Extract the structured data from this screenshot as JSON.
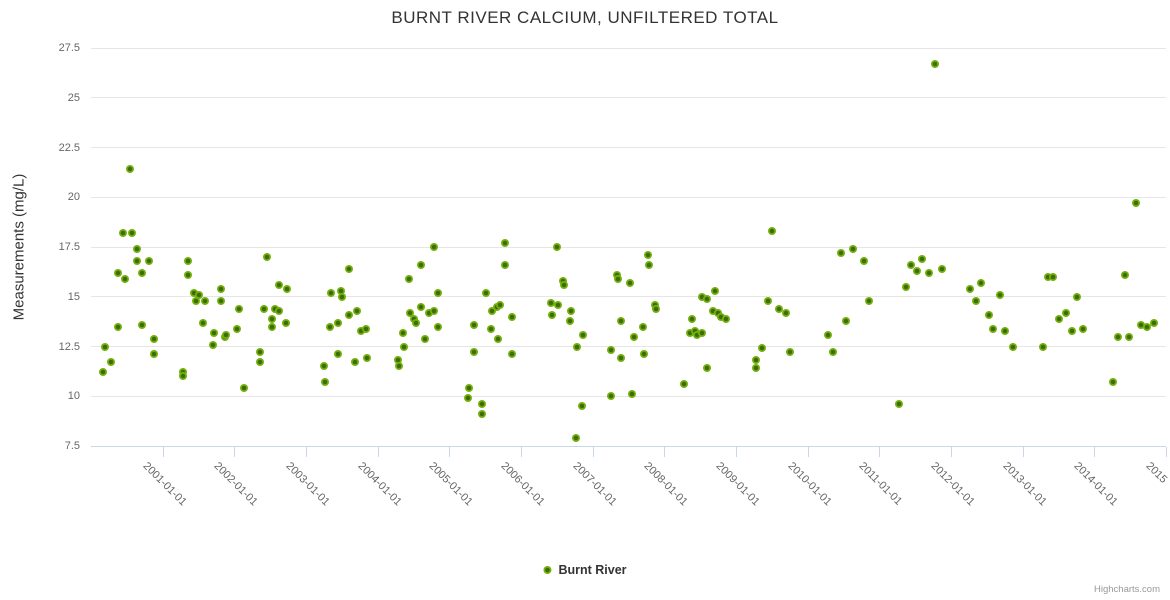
{
  "chart": {
    "title": "BURNT RIVER CALCIUM, UNFILTERED TOTAL",
    "legend": {
      "series_label": "Burnt River"
    },
    "credits": "Highcharts.com",
    "colors": {
      "marker_outer": "#76b00e",
      "marker_core": "#3a6e04",
      "gridline": "#e6e6e6",
      "axis_tick": "#ccd6eb",
      "title_text": "#333333",
      "label_text": "#666666",
      "credits_text": "#999999"
    }
  },
  "chart_data": {
    "type": "scatter",
    "title": "BURNT RIVER CALCIUM, UNFILTERED TOTAL",
    "xlabel": "",
    "ylabel": "Measurements (mg/L)",
    "xlim": [
      2000,
      2015
    ],
    "ylim": [
      7.5,
      27.5
    ],
    "grid": "horizontal-only",
    "legend_position": "bottom-center",
    "y_ticks": [
      {
        "value": 7.5,
        "label": "7.5"
      },
      {
        "value": 10,
        "label": "10"
      },
      {
        "value": 12.5,
        "label": "12.5"
      },
      {
        "value": 15,
        "label": "15"
      },
      {
        "value": 17.5,
        "label": "17.5"
      },
      {
        "value": 20,
        "label": "20"
      },
      {
        "value": 22.5,
        "label": "22.5"
      },
      {
        "value": 25,
        "label": "25"
      },
      {
        "value": 27.5,
        "label": "27.5"
      }
    ],
    "x_ticks": [
      {
        "value": 2001,
        "label": "2001-01-01"
      },
      {
        "value": 2002,
        "label": "2002-01-01"
      },
      {
        "value": 2003,
        "label": "2003-01-01"
      },
      {
        "value": 2004,
        "label": "2004-01-01"
      },
      {
        "value": 2005,
        "label": "2005-01-01"
      },
      {
        "value": 2006,
        "label": "2006-01-01"
      },
      {
        "value": 2007,
        "label": "2007-01-01"
      },
      {
        "value": 2008,
        "label": "2008-01-01"
      },
      {
        "value": 2009,
        "label": "2009-01-01"
      },
      {
        "value": 2010,
        "label": "2010-01-01"
      },
      {
        "value": 2011,
        "label": "2011-01-01"
      },
      {
        "value": 2012,
        "label": "2012-01-01"
      },
      {
        "value": 2013,
        "label": "2013-01-01"
      },
      {
        "value": 2014,
        "label": "2014-01-01"
      },
      {
        "value": 2015,
        "label": "2015"
      }
    ],
    "series": [
      {
        "name": "Burnt River",
        "points": [
          [
            2000.17,
            11.2
          ],
          [
            2000.19,
            12.5
          ],
          [
            2000.28,
            11.7
          ],
          [
            2000.38,
            16.2
          ],
          [
            2000.38,
            13.5
          ],
          [
            2000.45,
            18.2
          ],
          [
            2000.47,
            15.9
          ],
          [
            2000.54,
            21.4
          ],
          [
            2000.57,
            18.2
          ],
          [
            2000.64,
            17.4
          ],
          [
            2000.64,
            16.8
          ],
          [
            2000.71,
            16.2
          ],
          [
            2000.71,
            13.6
          ],
          [
            2000.81,
            16.8
          ],
          [
            2000.88,
            12.9
          ],
          [
            2000.88,
            12.1
          ],
          [
            2001.28,
            11.2
          ],
          [
            2001.28,
            11.0
          ],
          [
            2001.35,
            16.8
          ],
          [
            2001.35,
            16.1
          ],
          [
            2001.44,
            15.2
          ],
          [
            2001.47,
            14.8
          ],
          [
            2001.5,
            15.1
          ],
          [
            2001.56,
            13.7
          ],
          [
            2001.59,
            14.8
          ],
          [
            2001.7,
            12.6
          ],
          [
            2001.72,
            13.2
          ],
          [
            2001.81,
            15.4
          ],
          [
            2001.81,
            14.8
          ],
          [
            2001.87,
            13.0
          ],
          [
            2001.88,
            13.1
          ],
          [
            2002.04,
            13.4
          ],
          [
            2002.06,
            14.4
          ],
          [
            2002.14,
            10.4
          ],
          [
            2002.36,
            12.2
          ],
          [
            2002.36,
            11.7
          ],
          [
            2002.42,
            14.4
          ],
          [
            2002.45,
            17.0
          ],
          [
            2002.52,
            13.9
          ],
          [
            2002.52,
            13.5
          ],
          [
            2002.57,
            14.4
          ],
          [
            2002.62,
            15.6
          ],
          [
            2002.63,
            14.3
          ],
          [
            2002.72,
            13.7
          ],
          [
            2002.73,
            15.4
          ],
          [
            2003.25,
            11.5
          ],
          [
            2003.26,
            10.7
          ],
          [
            2003.34,
            13.5
          ],
          [
            2003.35,
            15.2
          ],
          [
            2003.45,
            13.7
          ],
          [
            2003.45,
            12.1
          ],
          [
            2003.49,
            15.3
          ],
          [
            2003.5,
            15.0
          ],
          [
            2003.6,
            16.4
          ],
          [
            2003.6,
            14.1
          ],
          [
            2003.68,
            11.7
          ],
          [
            2003.71,
            14.3
          ],
          [
            2003.77,
            13.3
          ],
          [
            2003.84,
            13.4
          ],
          [
            2003.85,
            11.9
          ],
          [
            2004.29,
            11.8
          ],
          [
            2004.3,
            11.5
          ],
          [
            2004.35,
            13.2
          ],
          [
            2004.37,
            12.5
          ],
          [
            2004.44,
            15.9
          ],
          [
            2004.45,
            14.2
          ],
          [
            2004.5,
            13.9
          ],
          [
            2004.53,
            13.7
          ],
          [
            2004.6,
            16.6
          ],
          [
            2004.6,
            14.5
          ],
          [
            2004.66,
            12.9
          ],
          [
            2004.72,
            14.2
          ],
          [
            2004.78,
            17.5
          ],
          [
            2004.78,
            14.3
          ],
          [
            2004.84,
            15.2
          ],
          [
            2004.84,
            13.5
          ],
          [
            2005.26,
            9.9
          ],
          [
            2005.27,
            10.4
          ],
          [
            2005.35,
            13.6
          ],
          [
            2005.35,
            12.2
          ],
          [
            2005.45,
            9.6
          ],
          [
            2005.46,
            9.1
          ],
          [
            2005.51,
            15.2
          ],
          [
            2005.58,
            13.4
          ],
          [
            2005.59,
            14.3
          ],
          [
            2005.66,
            14.5
          ],
          [
            2005.68,
            12.9
          ],
          [
            2005.71,
            14.6
          ],
          [
            2005.77,
            17.7
          ],
          [
            2005.78,
            16.6
          ],
          [
            2005.87,
            14.0
          ],
          [
            2005.87,
            12.1
          ],
          [
            2006.42,
            14.7
          ],
          [
            2006.43,
            14.1
          ],
          [
            2006.5,
            17.5
          ],
          [
            2006.52,
            14.6
          ],
          [
            2006.58,
            15.8
          ],
          [
            2006.6,
            15.6
          ],
          [
            2006.69,
            13.8
          ],
          [
            2006.7,
            14.3
          ],
          [
            2006.77,
            7.9
          ],
          [
            2006.78,
            12.5
          ],
          [
            2006.85,
            9.5
          ],
          [
            2006.86,
            13.1
          ],
          [
            2007.25,
            12.3
          ],
          [
            2007.25,
            10.0
          ],
          [
            2007.34,
            16.1
          ],
          [
            2007.35,
            15.9
          ],
          [
            2007.4,
            13.8
          ],
          [
            2007.4,
            11.9
          ],
          [
            2007.52,
            15.7
          ],
          [
            2007.55,
            10.1
          ],
          [
            2007.57,
            13.0
          ],
          [
            2007.7,
            13.5
          ],
          [
            2007.71,
            12.1
          ],
          [
            2007.77,
            17.1
          ],
          [
            2007.78,
            16.6
          ],
          [
            2007.87,
            14.6
          ],
          [
            2007.88,
            14.4
          ],
          [
            2008.28,
            10.6
          ],
          [
            2008.36,
            13.2
          ],
          [
            2008.38,
            13.9
          ],
          [
            2008.43,
            13.3
          ],
          [
            2008.46,
            13.1
          ],
          [
            2008.52,
            15.0
          ],
          [
            2008.53,
            13.2
          ],
          [
            2008.59,
            14.9
          ],
          [
            2008.6,
            11.4
          ],
          [
            2008.68,
            14.3
          ],
          [
            2008.7,
            15.3
          ],
          [
            2008.75,
            14.2
          ],
          [
            2008.79,
            14.0
          ],
          [
            2008.86,
            13.9
          ],
          [
            2009.28,
            11.8
          ],
          [
            2009.28,
            11.4
          ],
          [
            2009.36,
            12.4
          ],
          [
            2009.45,
            14.8
          ],
          [
            2009.5,
            18.3
          ],
          [
            2009.6,
            14.4
          ],
          [
            2009.7,
            14.2
          ],
          [
            2009.75,
            12.2
          ],
          [
            2010.29,
            13.1
          ],
          [
            2010.36,
            12.2
          ],
          [
            2010.46,
            17.2
          ],
          [
            2010.54,
            13.8
          ],
          [
            2010.63,
            17.4
          ],
          [
            2010.78,
            16.8
          ],
          [
            2010.86,
            14.8
          ],
          [
            2011.27,
            9.6
          ],
          [
            2011.37,
            15.5
          ],
          [
            2011.44,
            16.6
          ],
          [
            2011.53,
            16.3
          ],
          [
            2011.6,
            16.9
          ],
          [
            2011.69,
            16.2
          ],
          [
            2011.78,
            26.7
          ],
          [
            2011.87,
            16.4
          ],
          [
            2012.27,
            15.4
          ],
          [
            2012.35,
            14.8
          ],
          [
            2012.42,
            15.7
          ],
          [
            2012.53,
            14.1
          ],
          [
            2012.59,
            13.4
          ],
          [
            2012.69,
            15.1
          ],
          [
            2012.76,
            13.3
          ],
          [
            2012.86,
            12.5
          ],
          [
            2013.28,
            12.5
          ],
          [
            2013.35,
            16.0
          ],
          [
            2013.43,
            16.0
          ],
          [
            2013.5,
            13.9
          ],
          [
            2013.61,
            14.2
          ],
          [
            2013.69,
            13.3
          ],
          [
            2013.76,
            15.0
          ],
          [
            2013.84,
            13.4
          ],
          [
            2014.26,
            10.7
          ],
          [
            2014.33,
            13.0
          ],
          [
            2014.43,
            16.1
          ],
          [
            2014.49,
            13.0
          ],
          [
            2014.58,
            19.7
          ],
          [
            2014.65,
            13.6
          ],
          [
            2014.74,
            13.5
          ],
          [
            2014.83,
            13.7
          ]
        ]
      }
    ]
  }
}
